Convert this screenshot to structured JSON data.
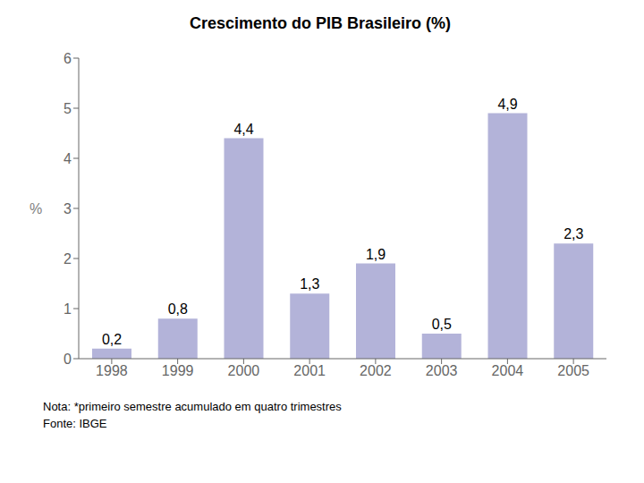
{
  "chart_data": {
    "type": "bar",
    "title": "Crescimento do PIB Brasileiro (%)",
    "categories": [
      "1998",
      "1999",
      "2000",
      "2001",
      "2002",
      "2003",
      "2004",
      "2005"
    ],
    "values": [
      0.2,
      0.8,
      4.4,
      1.3,
      1.9,
      0.5,
      4.9,
      2.3
    ],
    "value_labels": [
      "0,2",
      "0,8",
      "4,4",
      "1,3",
      "1,9",
      "0,5",
      "4,9",
      "2,3"
    ],
    "data_labels": true,
    "color": "#b3b3d9",
    "ylabel": "%",
    "ylim": [
      0,
      6
    ],
    "yticks": [
      0,
      1,
      2,
      3,
      4,
      5,
      6
    ],
    "grid": false,
    "annotations": [
      "Nota: *primeiro semestre acumulado em quatro trimestres",
      "Fonte: IBGE"
    ]
  }
}
